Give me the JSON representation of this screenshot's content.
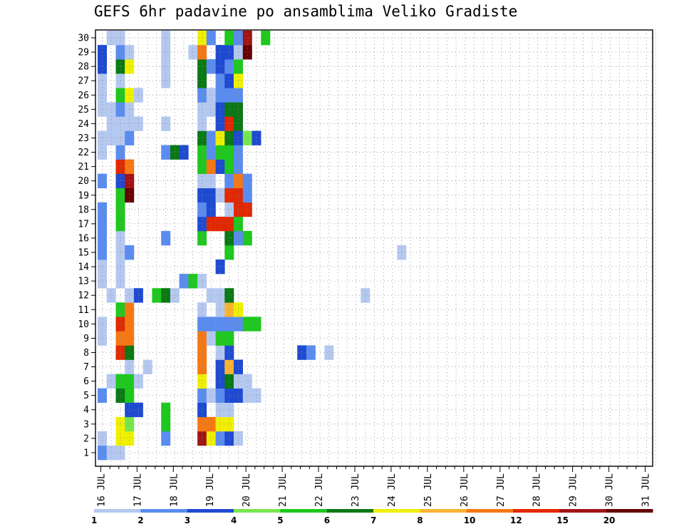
{
  "chart_data": {
    "type": "heatmap",
    "title": "GEFS 6hr padavine po ansamblima Veliko Gradiste",
    "x_tick_labels": [
      "16 JUL",
      "17 JUL",
      "18 JUL",
      "19 JUL",
      "20 JUL",
      "21 JUL",
      "22 JUL",
      "23 JUL",
      "24 JUL",
      "25 JUL",
      "26 JUL",
      "27 JUL",
      "28 JUL",
      "29 JUL",
      "30 JUL",
      "31 JUL"
    ],
    "y_tick_labels": [
      "1",
      "2",
      "3",
      "4",
      "5",
      "6",
      "7",
      "8",
      "9",
      "10",
      "11",
      "12",
      "13",
      "14",
      "15",
      "16",
      "17",
      "18",
      "19",
      "20",
      "21",
      "22",
      "23",
      "24",
      "25",
      "26",
      "27",
      "28",
      "29",
      "30"
    ],
    "grid": true,
    "colorbar": {
      "labels": [
        "1",
        "2",
        "3",
        "4",
        "5",
        "6",
        "7",
        "8",
        "10",
        "12",
        "15",
        "20"
      ],
      "colors": [
        "#b4c8f0",
        "#5a8cf0",
        "#1e4ad2",
        "#78e650",
        "#1ec81e",
        "#0a7814",
        "#f0f000",
        "#fab432",
        "#f57814",
        "#e12800",
        "#a01414",
        "#640000"
      ]
    },
    "cells_note": "columns = 6-hourly steps from 16 JUL 00z (0..61), value = colour class index 0..11",
    "cells": [
      [
        0,
        29,
        1
      ],
      [
        1,
        29,
        0
      ],
      [
        2,
        29,
        0
      ],
      [
        0,
        28,
        0
      ],
      [
        2,
        28,
        6
      ],
      [
        3,
        28,
        6
      ],
      [
        7,
        28,
        1
      ],
      [
        11,
        28,
        10
      ],
      [
        12,
        28,
        6
      ],
      [
        13,
        28,
        1
      ],
      [
        14,
        28,
        2
      ],
      [
        15,
        28,
        0
      ],
      [
        2,
        27,
        6
      ],
      [
        3,
        27,
        3
      ],
      [
        7,
        27,
        4
      ],
      [
        11,
        27,
        8
      ],
      [
        12,
        27,
        8
      ],
      [
        13,
        27,
        6
      ],
      [
        14,
        27,
        6
      ],
      [
        3,
        26,
        2
      ],
      [
        4,
        26,
        2
      ],
      [
        7,
        26,
        4
      ],
      [
        11,
        26,
        2
      ],
      [
        13,
        26,
        0
      ],
      [
        14,
        26,
        0
      ],
      [
        0,
        25,
        1
      ],
      [
        2,
        25,
        5
      ],
      [
        3,
        25,
        4
      ],
      [
        11,
        25,
        1
      ],
      [
        12,
        25,
        0
      ],
      [
        13,
        25,
        1
      ],
      [
        14,
        25,
        2
      ],
      [
        15,
        25,
        2
      ],
      [
        16,
        25,
        0
      ],
      [
        17,
        25,
        0
      ],
      [
        1,
        24,
        0
      ],
      [
        2,
        24,
        4
      ],
      [
        3,
        24,
        4
      ],
      [
        4,
        24,
        0
      ],
      [
        11,
        24,
        6
      ],
      [
        13,
        24,
        2
      ],
      [
        14,
        24,
        5
      ],
      [
        15,
        24,
        0
      ],
      [
        16,
        24,
        0
      ],
      [
        3,
        23,
        0
      ],
      [
        5,
        23,
        0
      ],
      [
        11,
        23,
        8
      ],
      [
        13,
        23,
        2
      ],
      [
        14,
        23,
        7
      ],
      [
        15,
        23,
        2
      ],
      [
        2,
        22,
        9
      ],
      [
        3,
        22,
        5
      ],
      [
        11,
        22,
        8
      ],
      [
        13,
        22,
        0
      ],
      [
        14,
        22,
        2
      ],
      [
        22,
        22,
        2
      ],
      [
        23,
        22,
        1
      ],
      [
        25,
        22,
        0
      ],
      [
        0,
        21,
        0
      ],
      [
        2,
        21,
        8
      ],
      [
        3,
        21,
        8
      ],
      [
        11,
        21,
        8
      ],
      [
        12,
        21,
        0
      ],
      [
        13,
        21,
        4
      ],
      [
        14,
        21,
        4
      ],
      [
        0,
        20,
        0
      ],
      [
        2,
        20,
        9
      ],
      [
        3,
        20,
        8
      ],
      [
        11,
        20,
        1
      ],
      [
        12,
        20,
        1
      ],
      [
        13,
        20,
        1
      ],
      [
        14,
        20,
        1
      ],
      [
        15,
        20,
        1
      ],
      [
        16,
        20,
        4
      ],
      [
        17,
        20,
        4
      ],
      [
        2,
        19,
        4
      ],
      [
        3,
        19,
        8
      ],
      [
        11,
        19,
        0
      ],
      [
        13,
        19,
        0
      ],
      [
        14,
        19,
        7
      ],
      [
        15,
        19,
        6
      ],
      [
        1,
        18,
        0
      ],
      [
        3,
        18,
        0
      ],
      [
        4,
        18,
        2
      ],
      [
        6,
        18,
        4
      ],
      [
        7,
        18,
        5
      ],
      [
        8,
        18,
        0
      ],
      [
        12,
        18,
        0
      ],
      [
        13,
        18,
        0
      ],
      [
        14,
        18,
        5
      ],
      [
        29,
        18,
        0
      ],
      [
        0,
        17,
        0
      ],
      [
        2,
        17,
        0
      ],
      [
        9,
        17,
        1
      ],
      [
        10,
        17,
        4
      ],
      [
        11,
        17,
        0
      ],
      [
        0,
        16,
        0
      ],
      [
        2,
        16,
        0
      ],
      [
        13,
        16,
        2
      ],
      [
        0,
        15,
        1
      ],
      [
        2,
        15,
        0
      ],
      [
        3,
        15,
        1
      ],
      [
        14,
        15,
        4
      ],
      [
        33,
        15,
        0
      ],
      [
        0,
        14,
        1
      ],
      [
        2,
        14,
        0
      ],
      [
        7,
        14,
        1
      ],
      [
        11,
        14,
        4
      ],
      [
        14,
        14,
        5
      ],
      [
        15,
        14,
        1
      ],
      [
        16,
        14,
        4
      ],
      [
        0,
        13,
        1
      ],
      [
        2,
        13,
        4
      ],
      [
        11,
        13,
        2
      ],
      [
        12,
        13,
        9
      ],
      [
        13,
        13,
        9
      ],
      [
        14,
        13,
        9
      ],
      [
        15,
        13,
        4
      ],
      [
        0,
        12,
        1
      ],
      [
        2,
        12,
        4
      ],
      [
        11,
        12,
        1
      ],
      [
        12,
        12,
        2
      ],
      [
        14,
        12,
        0
      ],
      [
        15,
        12,
        9
      ],
      [
        16,
        12,
        9
      ],
      [
        2,
        11,
        4
      ],
      [
        3,
        11,
        11
      ],
      [
        11,
        11,
        2
      ],
      [
        12,
        11,
        2
      ],
      [
        13,
        11,
        0
      ],
      [
        14,
        11,
        9
      ],
      [
        15,
        11,
        9
      ],
      [
        16,
        11,
        1
      ],
      [
        0,
        10,
        1
      ],
      [
        2,
        10,
        2
      ],
      [
        3,
        10,
        10
      ],
      [
        11,
        10,
        0
      ],
      [
        12,
        10,
        0
      ],
      [
        14,
        10,
        1
      ],
      [
        15,
        10,
        8
      ],
      [
        16,
        10,
        1
      ],
      [
        2,
        9,
        9
      ],
      [
        3,
        9,
        8
      ],
      [
        11,
        9,
        4
      ],
      [
        12,
        9,
        8
      ],
      [
        13,
        9,
        2
      ],
      [
        14,
        9,
        4
      ],
      [
        15,
        9,
        1
      ],
      [
        0,
        8,
        0
      ],
      [
        2,
        8,
        1
      ],
      [
        7,
        8,
        1
      ],
      [
        8,
        8,
        5
      ],
      [
        9,
        8,
        2
      ],
      [
        11,
        8,
        4
      ],
      [
        12,
        8,
        1
      ],
      [
        13,
        8,
        4
      ],
      [
        14,
        8,
        4
      ],
      [
        15,
        8,
        1
      ],
      [
        0,
        7,
        0
      ],
      [
        1,
        7,
        0
      ],
      [
        2,
        7,
        0
      ],
      [
        3,
        7,
        1
      ],
      [
        11,
        7,
        5
      ],
      [
        12,
        7,
        1
      ],
      [
        13,
        7,
        6
      ],
      [
        14,
        7,
        5
      ],
      [
        15,
        7,
        2
      ],
      [
        16,
        7,
        3
      ],
      [
        17,
        7,
        2
      ],
      [
        1,
        6,
        0
      ],
      [
        2,
        6,
        0
      ],
      [
        3,
        6,
        0
      ],
      [
        4,
        6,
        0
      ],
      [
        7,
        6,
        0
      ],
      [
        11,
        6,
        0
      ],
      [
        13,
        6,
        2
      ],
      [
        14,
        6,
        9
      ],
      [
        15,
        6,
        5
      ],
      [
        0,
        5,
        0
      ],
      [
        1,
        5,
        0
      ],
      [
        2,
        5,
        1
      ],
      [
        3,
        5,
        0
      ],
      [
        11,
        5,
        0
      ],
      [
        12,
        5,
        0
      ],
      [
        13,
        5,
        2
      ],
      [
        14,
        5,
        5
      ],
      [
        15,
        5,
        5
      ],
      [
        0,
        4,
        0
      ],
      [
        2,
        4,
        4
      ],
      [
        3,
        4,
        6
      ],
      [
        4,
        4,
        0
      ],
      [
        11,
        4,
        1
      ],
      [
        12,
        4,
        0
      ],
      [
        13,
        4,
        1
      ],
      [
        14,
        4,
        1
      ],
      [
        15,
        4,
        1
      ],
      [
        0,
        3,
        0
      ],
      [
        2,
        3,
        0
      ],
      [
        7,
        3,
        0
      ],
      [
        11,
        3,
        5
      ],
      [
        13,
        3,
        1
      ],
      [
        14,
        3,
        2
      ],
      [
        15,
        3,
        6
      ],
      [
        0,
        2,
        2
      ],
      [
        2,
        2,
        5
      ],
      [
        3,
        2,
        6
      ],
      [
        7,
        2,
        0
      ],
      [
        11,
        2,
        5
      ],
      [
        12,
        2,
        1
      ],
      [
        13,
        2,
        2
      ],
      [
        14,
        2,
        1
      ],
      [
        15,
        2,
        4
      ],
      [
        0,
        1,
        2
      ],
      [
        2,
        1,
        1
      ],
      [
        3,
        1,
        0
      ],
      [
        7,
        1,
        0
      ],
      [
        10,
        1,
        0
      ],
      [
        11,
        1,
        8
      ],
      [
        13,
        1,
        2
      ],
      [
        14,
        1,
        2
      ],
      [
        15,
        1,
        0
      ],
      [
        16,
        1,
        11
      ],
      [
        1,
        0,
        0
      ],
      [
        2,
        0,
        0
      ],
      [
        7,
        0,
        0
      ],
      [
        11,
        0,
        6
      ],
      [
        12,
        0,
        1
      ],
      [
        14,
        0,
        4
      ],
      [
        15,
        0,
        1
      ],
      [
        16,
        0,
        10
      ],
      [
        18,
        0,
        4
      ]
    ]
  }
}
